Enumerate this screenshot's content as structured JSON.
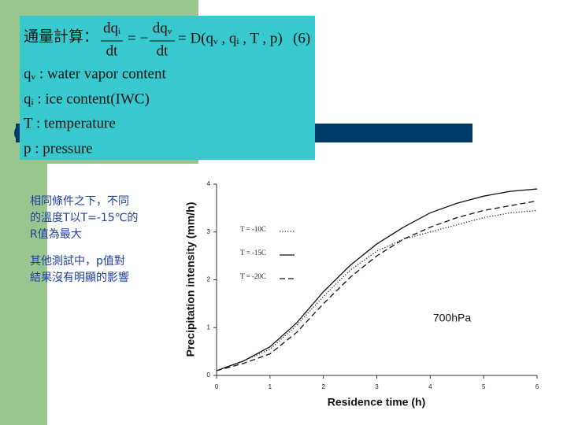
{
  "equation": {
    "label": "通量計算：",
    "num1": "dqᵢ",
    "den1": "dt",
    "eq1": "= −",
    "num2": "dqᵥ",
    "den2": "dt",
    "rhs": "= D(qᵥ , qᵢ , T , p)",
    "number": "(6)"
  },
  "definitions": [
    "qᵥ : water vapor content",
    "qᵢ : ice content(IWC)",
    "T : temperature",
    "p : pressure"
  ],
  "notes": [
    [
      "相同條件之下，不同",
      "的溫度T以T=-15℃的",
      "R值為最大"
    ],
    [
      "其他測試中，p值對",
      "結果沒有明顯的影響"
    ]
  ],
  "chart_data": {
    "type": "line",
    "x_label": "Residence time (h)",
    "y_label": "Precipitation intensity (mm/h)",
    "annotation": "700hPa",
    "x": [
      0,
      0.5,
      1,
      1.5,
      2,
      2.5,
      3,
      3.5,
      4,
      4.5,
      5,
      5.5,
      6
    ],
    "series": [
      {
        "name": "T = -10C",
        "color": "#222222",
        "style": "dotted",
        "values": [
          0.1,
          0.3,
          0.55,
          1.05,
          1.65,
          2.2,
          2.6,
          2.85,
          3.0,
          3.15,
          3.3,
          3.4,
          3.45
        ]
      },
      {
        "name": "T = -15C",
        "color": "#111111",
        "style": "solid",
        "values": [
          0.1,
          0.3,
          0.6,
          1.1,
          1.75,
          2.3,
          2.75,
          3.1,
          3.4,
          3.6,
          3.75,
          3.85,
          3.9
        ]
      },
      {
        "name": "T = -20C",
        "color": "#111111",
        "style": "dashed",
        "values": [
          0.1,
          0.25,
          0.45,
          0.9,
          1.5,
          2.05,
          2.5,
          2.85,
          3.1,
          3.3,
          3.45,
          3.55,
          3.65
        ]
      }
    ],
    "xlim": [
      0,
      6
    ],
    "ylim": [
      0,
      4
    ],
    "xticks": [
      0,
      1,
      2,
      3,
      4,
      5,
      6
    ],
    "yticks": [
      0,
      1,
      2,
      3,
      4
    ]
  }
}
